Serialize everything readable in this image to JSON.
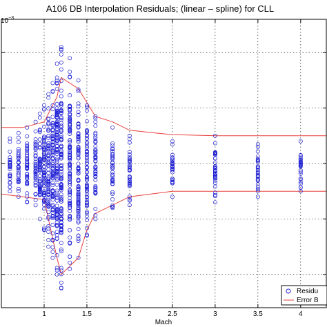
{
  "chart_data": {
    "type": "scatter",
    "title": "A106 DB Interpolation Residuals; (linear – spline) for CLL",
    "xlabel": "Mach",
    "ylabel": "",
    "exponent_label": "10",
    "exponent_power": "−3",
    "xlim": [
      0.5,
      4.3
    ],
    "ylim": [
      -2.6,
      2.6
    ],
    "xticks": [
      1,
      1.5,
      2,
      2.5,
      3,
      3.5,
      4
    ],
    "xtick_labels": [
      "1",
      "1.5",
      "2",
      "2.5",
      "3",
      "3.5",
      "4"
    ],
    "ygrid": [
      -2,
      -1,
      0,
      1,
      2
    ],
    "grid": true,
    "legend_position": "bottom-right",
    "colors": {
      "residuals": "#1f1fd6",
      "error_bound": "#e8413a"
    },
    "series": [
      {
        "name": "Residuals",
        "marker": "circle",
        "columns": [
          {
            "x": 0.6,
            "ymin": -0.5,
            "ymax": 0.45
          },
          {
            "x": 0.7,
            "ymin": -0.6,
            "ymax": 0.55
          },
          {
            "x": 0.8,
            "ymin": -0.7,
            "ymax": 0.65
          },
          {
            "x": 0.9,
            "ymin": -0.75,
            "ymax": 0.75
          },
          {
            "x": 0.95,
            "ymin": -1.0,
            "ymax": 0.9
          },
          {
            "x": 1.0,
            "ymin": -1.2,
            "ymax": 1.05
          },
          {
            "x": 1.05,
            "ymin": -1.5,
            "ymax": 1.25
          },
          {
            "x": 1.1,
            "ymin": -1.7,
            "ymax": 1.45
          },
          {
            "x": 1.15,
            "ymin": -2.0,
            "ymax": 1.8
          },
          {
            "x": 1.2,
            "ymin": -2.25,
            "ymax": 2.1
          },
          {
            "x": 1.3,
            "ymin": -1.9,
            "ymax": 1.9
          },
          {
            "x": 1.4,
            "ymin": -1.7,
            "ymax": 1.5
          },
          {
            "x": 1.5,
            "ymin": -1.3,
            "ymax": 1.05
          },
          {
            "x": 1.6,
            "ymin": -1.0,
            "ymax": 0.85
          },
          {
            "x": 1.8,
            "ymin": -0.8,
            "ymax": 0.65
          },
          {
            "x": 2.0,
            "ymin": -0.75,
            "ymax": 0.5
          },
          {
            "x": 2.5,
            "ymin": -0.6,
            "ymax": 0.4
          },
          {
            "x": 3.0,
            "ymin": -0.7,
            "ymax": 0.5
          },
          {
            "x": 3.5,
            "ymin": -0.6,
            "ymax": 0.35
          },
          {
            "x": 4.0,
            "ymin": -0.5,
            "ymax": 0.4
          }
        ]
      },
      {
        "name": "Error Bound",
        "line": true,
        "upper": [
          {
            "x": 0.5,
            "y": 0.65
          },
          {
            "x": 0.75,
            "y": 0.65
          },
          {
            "x": 1.0,
            "y": 0.75
          },
          {
            "x": 1.15,
            "y": 1.2
          },
          {
            "x": 1.2,
            "y": 1.55
          },
          {
            "x": 1.4,
            "y": 1.35
          },
          {
            "x": 1.6,
            "y": 0.85
          },
          {
            "x": 1.8,
            "y": 0.75
          },
          {
            "x": 2.0,
            "y": 0.6
          },
          {
            "x": 2.3,
            "y": 0.55
          },
          {
            "x": 2.5,
            "y": 0.52
          },
          {
            "x": 3.0,
            "y": 0.5
          },
          {
            "x": 3.5,
            "y": 0.5
          },
          {
            "x": 4.3,
            "y": 0.5
          }
        ],
        "lower": [
          {
            "x": 0.5,
            "y": -0.55
          },
          {
            "x": 0.75,
            "y": -0.6
          },
          {
            "x": 1.0,
            "y": -0.65
          },
          {
            "x": 1.15,
            "y": -1.7
          },
          {
            "x": 1.2,
            "y": -2.0
          },
          {
            "x": 1.3,
            "y": -1.85
          },
          {
            "x": 1.4,
            "y": -1.7
          },
          {
            "x": 1.5,
            "y": -1.2
          },
          {
            "x": 1.6,
            "y": -0.9
          },
          {
            "x": 1.8,
            "y": -0.75
          },
          {
            "x": 2.0,
            "y": -0.6
          },
          {
            "x": 2.5,
            "y": -0.5
          },
          {
            "x": 3.0,
            "y": -0.5
          },
          {
            "x": 4.3,
            "y": -0.5
          }
        ]
      }
    ],
    "legend": {
      "entries": [
        {
          "label": "Residu",
          "kind": "marker"
        },
        {
          "label": "Error B",
          "kind": "line"
        }
      ]
    }
  }
}
